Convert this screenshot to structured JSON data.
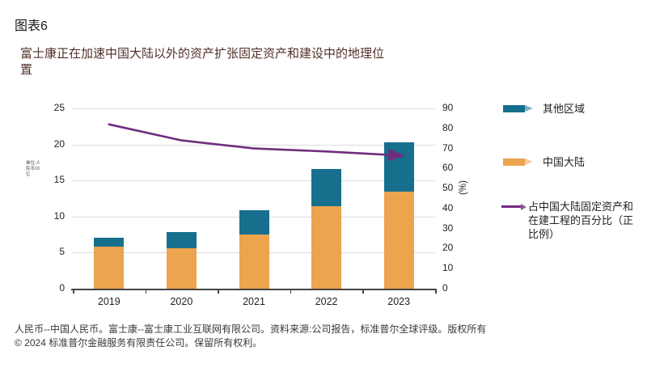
{
  "page": {
    "figure_label": "图表6",
    "title": "富士康正在加速中国大陆以外的资产扩张固定资产和建设中的地理位置",
    "footnote": "人民币--中国人民币。富士康--富士康工业互联网有限公司。资料来源:公司报告，标准普尔全球评级。版权所有© 2024 标准普尔金融服务有限责任公司。保留所有权利。"
  },
  "chart_data": {
    "type": "bar",
    "subtype": "stacked-bar-with-line",
    "categories": [
      "2019",
      "2020",
      "2021",
      "2022",
      "2023"
    ],
    "series": [
      {
        "name": "中国大陆",
        "type": "bar",
        "stack": "assets",
        "axis": "left",
        "color": "#eca44e",
        "values": [
          5.8,
          5.6,
          7.5,
          11.4,
          13.5
        ]
      },
      {
        "name": "其他区域",
        "type": "bar",
        "stack": "assets",
        "axis": "left",
        "color": "#16708d",
        "values": [
          1.3,
          2.2,
          3.4,
          5.2,
          6.8
        ]
      },
      {
        "name": "占中国大陆固定资产和在建工程的百分比（正比例）",
        "type": "line",
        "axis": "right",
        "color": "#702d7d",
        "values": [
          82,
          74,
          70,
          68.5,
          66.5
        ]
      }
    ],
    "left_axis": {
      "min": 0,
      "max": 25,
      "step": 5,
      "label": "单位:人民币10亿"
    },
    "right_axis": {
      "min": 0,
      "max": 90,
      "step": 10,
      "label": "(%)"
    },
    "grid": "horizontal",
    "legend_position": "right",
    "colors": {
      "grid": "#dcdcdc",
      "axis": "#454545",
      "tick_text": "#1f1f1f",
      "title_text": "#503028"
    }
  }
}
